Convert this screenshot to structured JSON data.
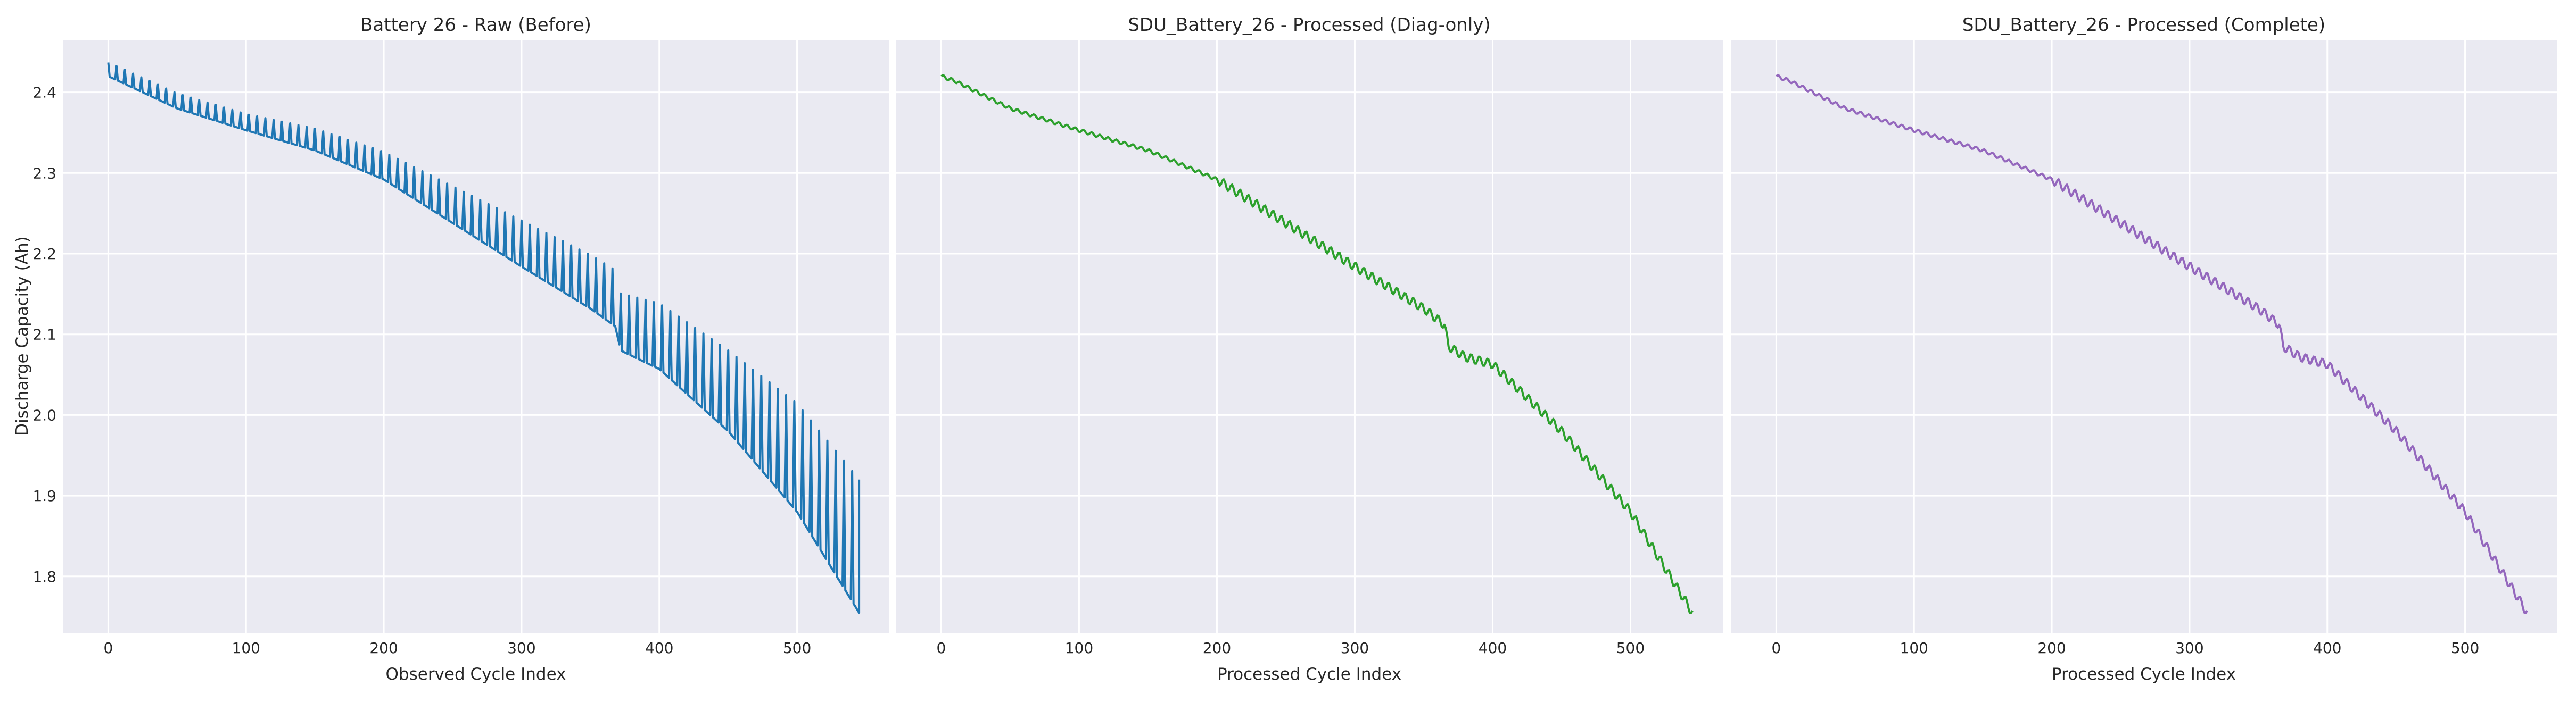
{
  "chart_data": [
    {
      "type": "line",
      "title": "Battery 26 - Raw (Before)",
      "xlabel": "Observed Cycle Index",
      "ylabel": "Discharge Capacity (Ah)",
      "xlim": [
        -33,
        567
      ],
      "ylim": [
        1.73,
        2.465
      ],
      "xticks": [
        0,
        100,
        200,
        300,
        400,
        500
      ],
      "yticks": [
        1.8,
        1.9,
        2.0,
        2.1,
        2.2,
        2.3,
        2.4
      ],
      "grid": true,
      "color": "#1f77b4",
      "x_range": [
        0,
        545
      ],
      "trend_points": [
        {
          "x": 0,
          "y": 2.42
        },
        {
          "x": 50,
          "y": 2.38
        },
        {
          "x": 100,
          "y": 2.353
        },
        {
          "x": 150,
          "y": 2.328
        },
        {
          "x": 200,
          "y": 2.292
        },
        {
          "x": 250,
          "y": 2.238
        },
        {
          "x": 300,
          "y": 2.184
        },
        {
          "x": 350,
          "y": 2.132
        },
        {
          "x": 368,
          "y": 2.11
        },
        {
          "x": 372,
          "y": 2.08
        },
        {
          "x": 400,
          "y": 2.057
        },
        {
          "x": 450,
          "y": 1.98
        },
        {
          "x": 500,
          "y": 1.88
        },
        {
          "x": 545,
          "y": 1.755
        }
      ],
      "diagnostic_cycle_interval": 6,
      "diagnostic_offsets": [
        {
          "x": 0,
          "dy": 0.017
        },
        {
          "x": 100,
          "dy": 0.02
        },
        {
          "x": 200,
          "dy": 0.034
        },
        {
          "x": 300,
          "dy": 0.057
        },
        {
          "x": 370,
          "dy": 0.07
        },
        {
          "x": 450,
          "dy": 0.1
        },
        {
          "x": 545,
          "dy": 0.165
        }
      ]
    },
    {
      "type": "line",
      "title": "SDU_Battery_26 - Processed (Diag-only)",
      "xlabel": "Processed Cycle Index",
      "ylabel": "",
      "xlim": [
        -33,
        567
      ],
      "ylim": [
        1.73,
        2.465
      ],
      "xticks": [
        0,
        100,
        200,
        300,
        400,
        500
      ],
      "yticks": [
        1.8,
        1.9,
        2.0,
        2.1,
        2.2,
        2.3,
        2.4
      ],
      "grid": true,
      "color": "#2ca02c",
      "x_range": [
        0,
        545
      ],
      "trend_points": [
        {
          "x": 0,
          "y": 2.42
        },
        {
          "x": 10,
          "y": 2.414
        },
        {
          "x": 50,
          "y": 2.38
        },
        {
          "x": 100,
          "y": 2.353
        },
        {
          "x": 150,
          "y": 2.328
        },
        {
          "x": 200,
          "y": 2.292
        },
        {
          "x": 250,
          "y": 2.238
        },
        {
          "x": 300,
          "y": 2.184
        },
        {
          "x": 350,
          "y": 2.132
        },
        {
          "x": 365,
          "y": 2.112
        },
        {
          "x": 368,
          "y": 2.085
        },
        {
          "x": 380,
          "y": 2.072
        },
        {
          "x": 400,
          "y": 2.063
        },
        {
          "x": 450,
          "y": 1.98
        },
        {
          "x": 500,
          "y": 1.88
        },
        {
          "x": 545,
          "y": 1.755
        }
      ]
    },
    {
      "type": "line",
      "title": "SDU_Battery_26 - Processed (Complete)",
      "xlabel": "Processed Cycle Index",
      "ylabel": "",
      "xlim": [
        -33,
        567
      ],
      "ylim": [
        1.73,
        2.465
      ],
      "xticks": [
        0,
        100,
        200,
        300,
        400,
        500
      ],
      "yticks": [
        1.8,
        1.9,
        2.0,
        2.1,
        2.2,
        2.3,
        2.4
      ],
      "grid": true,
      "color": "#9467bd",
      "x_range": [
        0,
        545
      ],
      "trend_points": [
        {
          "x": 0,
          "y": 2.42
        },
        {
          "x": 10,
          "y": 2.414
        },
        {
          "x": 50,
          "y": 2.38
        },
        {
          "x": 100,
          "y": 2.353
        },
        {
          "x": 150,
          "y": 2.328
        },
        {
          "x": 200,
          "y": 2.292
        },
        {
          "x": 250,
          "y": 2.238
        },
        {
          "x": 300,
          "y": 2.184
        },
        {
          "x": 350,
          "y": 2.132
        },
        {
          "x": 365,
          "y": 2.112
        },
        {
          "x": 368,
          "y": 2.085
        },
        {
          "x": 380,
          "y": 2.072
        },
        {
          "x": 400,
          "y": 2.063
        },
        {
          "x": 450,
          "y": 1.98
        },
        {
          "x": 500,
          "y": 1.88
        },
        {
          "x": 545,
          "y": 1.755
        }
      ]
    }
  ]
}
